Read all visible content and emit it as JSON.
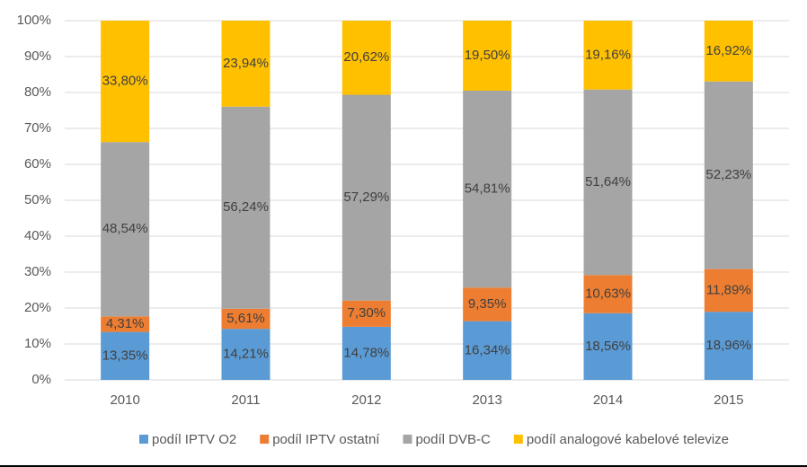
{
  "chart_data": {
    "type": "stacked_bar",
    "categories": [
      "2010",
      "2011",
      "2012",
      "2013",
      "2014",
      "2015"
    ],
    "series": [
      {
        "name": "podíl IPTV O2",
        "color": "#5b9bd5",
        "values": [
          13.35,
          14.21,
          14.78,
          16.34,
          18.56,
          18.96
        ],
        "value_labels": [
          "13,35%",
          "14,21%",
          "14,78%",
          "16,34%",
          "18,56%",
          "18,96%"
        ]
      },
      {
        "name": "podíl IPTV ostatní",
        "color": "#ed7d31",
        "values": [
          4.31,
          5.61,
          7.3,
          9.35,
          10.63,
          11.89
        ],
        "value_labels": [
          "4,31%",
          "5,61%",
          "7,30%",
          "9,35%",
          "10,63%",
          "11,89%"
        ]
      },
      {
        "name": "podíl DVB-C",
        "color": "#a5a5a5",
        "values": [
          48.54,
          56.24,
          57.29,
          54.81,
          51.64,
          52.23
        ],
        "value_labels": [
          "48,54%",
          "56,24%",
          "57,29%",
          "54,81%",
          "51,64%",
          "52,23%"
        ]
      },
      {
        "name": "podíl analogové kabelové televize",
        "color": "#ffc000",
        "values": [
          33.8,
          23.94,
          20.62,
          19.5,
          19.16,
          16.92
        ],
        "value_labels": [
          "33,80%",
          "23,94%",
          "20,62%",
          "19,50%",
          "19,16%",
          "16,92%"
        ]
      }
    ],
    "ylim": [
      0,
      100
    ],
    "yticks": [
      {
        "value": 0,
        "label": "0%"
      },
      {
        "value": 10,
        "label": "10%"
      },
      {
        "value": 20,
        "label": "20%"
      },
      {
        "value": 30,
        "label": "30%"
      },
      {
        "value": 40,
        "label": "40%"
      },
      {
        "value": 50,
        "label": "50%"
      },
      {
        "value": 60,
        "label": "60%"
      },
      {
        "value": 70,
        "label": "70%"
      },
      {
        "value": 80,
        "label": "80%"
      },
      {
        "value": 90,
        "label": "90%"
      },
      {
        "value": 100,
        "label": "100%"
      }
    ],
    "grid": true
  }
}
